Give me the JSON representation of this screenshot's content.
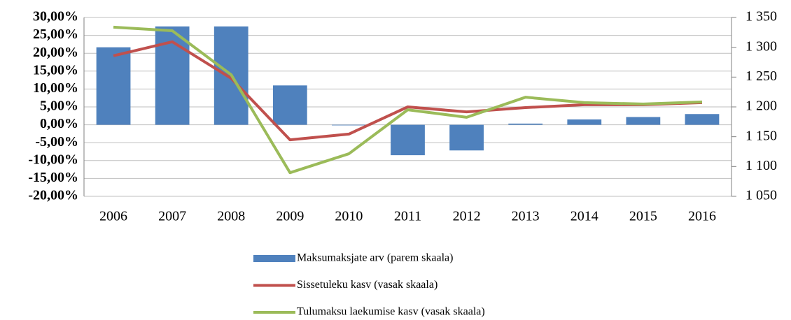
{
  "chart_data": {
    "type": "combo",
    "categories": [
      "2006",
      "2007",
      "2008",
      "2009",
      "2010",
      "2011",
      "2012",
      "2013",
      "2014",
      "2015",
      "2016"
    ],
    "series": [
      {
        "name": "Maksumaksjate arv (parem skaala)",
        "type": "bar",
        "axis": "y2",
        "color": "#4f81bd",
        "values": [
          1300,
          1335,
          1335,
          1236,
          1169,
          1119,
          1127,
          1172,
          1179,
          1183,
          1188
        ]
      },
      {
        "name": "Sissetuleku kasv (vasak skaala)",
        "type": "line",
        "color": "#c0504d",
        "values": [
          19.3,
          23.2,
          13.0,
          -4.2,
          -2.6,
          5.0,
          3.6,
          4.8,
          5.6,
          5.6,
          6.2
        ]
      },
      {
        "name": "Tulumaksu laekumise kasv (vasak skaala)",
        "type": "line",
        "color": "#9bbb59",
        "values": [
          27.3,
          26.3,
          14.0,
          -13.4,
          -8.1,
          4.2,
          2.1,
          7.7,
          6.2,
          5.8,
          6.4
        ]
      }
    ],
    "ylim": [
      -20,
      30
    ],
    "yticks": [
      {
        "value": 30,
        "label": "30,00%"
      },
      {
        "value": 25,
        "label": "25,00%"
      },
      {
        "value": 20,
        "label": "20,00%"
      },
      {
        "value": 15,
        "label": "15,00%"
      },
      {
        "value": 10,
        "label": "10,00%"
      },
      {
        "value": 5,
        "label": "5,00%"
      },
      {
        "value": 0,
        "label": "0,00%"
      },
      {
        "value": -5,
        "label": "-5,00%"
      },
      {
        "value": -10,
        "label": "-10,00%"
      },
      {
        "value": -15,
        "label": "-15,00%"
      },
      {
        "value": -20,
        "label": "-20,00%"
      }
    ],
    "y2lim": [
      1050,
      1350
    ],
    "y2ticks": [
      {
        "value": 1350,
        "label": "1 350"
      },
      {
        "value": 1300,
        "label": "1 300"
      },
      {
        "value": 1250,
        "label": "1 250"
      },
      {
        "value": 1200,
        "label": "1 200"
      },
      {
        "value": 1150,
        "label": "1 150"
      },
      {
        "value": 1100,
        "label": "1 100"
      },
      {
        "value": 1050,
        "label": "1 050"
      }
    ],
    "grid": true
  }
}
